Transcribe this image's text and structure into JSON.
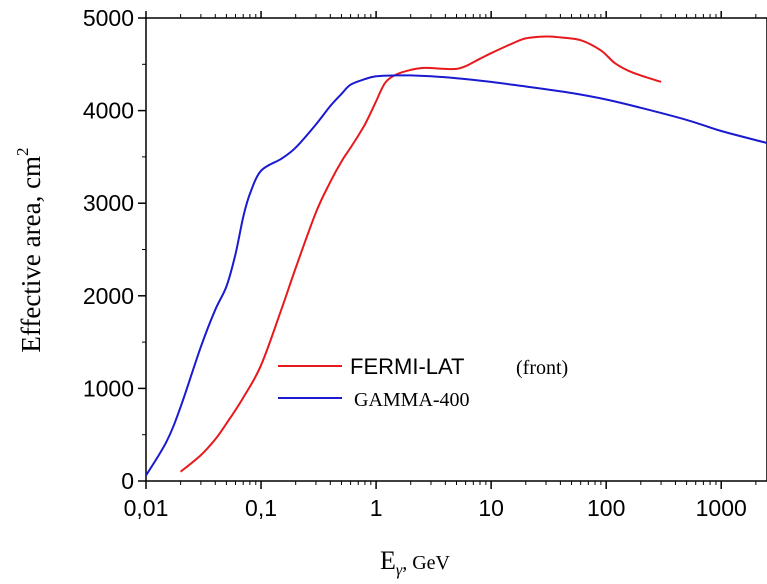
{
  "chart_data": {
    "type": "line",
    "xlabel": {
      "main": "E",
      "sub": "γ",
      "unit": ",  GeV"
    },
    "ylabel": {
      "main": "Effective area, cm",
      "sup": "2"
    },
    "x_scale": "log",
    "xlim": [
      0.01,
      2500
    ],
    "ylim": [
      0,
      5000
    ],
    "x_ticks": [
      0.01,
      0.1,
      1,
      10,
      100,
      1000
    ],
    "x_tick_labels": [
      "0,01",
      "0,1",
      "1",
      "10",
      "100",
      "1000"
    ],
    "y_ticks": [
      0,
      1000,
      2000,
      3000,
      4000,
      5000
    ],
    "y_tick_labels": [
      "0",
      "1000",
      "2000",
      "3000",
      "4000",
      "5000"
    ],
    "grid": false,
    "legend_position": "center",
    "series": [
      {
        "name": "FERMI-LAT",
        "name_note": "(front)",
        "color": "#e8191c",
        "x": [
          0.02,
          0.03,
          0.04,
          0.05,
          0.07,
          0.1,
          0.15,
          0.2,
          0.3,
          0.4,
          0.5,
          0.6,
          0.7,
          0.8,
          0.9,
          1.0,
          1.2,
          1.5,
          2,
          2.5,
          3,
          4,
          5,
          6,
          8,
          10,
          15,
          20,
          30,
          40,
          60,
          90,
          120,
          170,
          300
        ],
        "y": [
          100,
          280,
          450,
          620,
          900,
          1250,
          1850,
          2300,
          2900,
          3230,
          3450,
          3600,
          3730,
          3850,
          3980,
          4100,
          4300,
          4390,
          4440,
          4460,
          4460,
          4450,
          4450,
          4480,
          4560,
          4620,
          4720,
          4780,
          4800,
          4790,
          4760,
          4650,
          4510,
          4410,
          4310
        ]
      },
      {
        "name": "GAMMA-400",
        "color": "#1a1ad0",
        "x": [
          0.01,
          0.015,
          0.02,
          0.03,
          0.04,
          0.05,
          0.06,
          0.07,
          0.08,
          0.1,
          0.15,
          0.2,
          0.3,
          0.4,
          0.5,
          0.6,
          0.8,
          1.0,
          1.5,
          2,
          3,
          5,
          10,
          20,
          50,
          100,
          200,
          500,
          1000,
          2500
        ],
        "y": [
          60,
          420,
          800,
          1450,
          1850,
          2100,
          2450,
          2850,
          3100,
          3350,
          3480,
          3600,
          3850,
          4050,
          4180,
          4280,
          4340,
          4370,
          4380,
          4380,
          4370,
          4350,
          4310,
          4260,
          4190,
          4120,
          4030,
          3900,
          3780,
          3650
        ]
      }
    ]
  }
}
